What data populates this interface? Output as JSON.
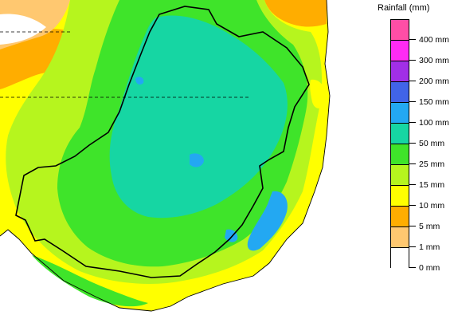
{
  "legend": {
    "title": "Rainfall (mm)",
    "bins": [
      {
        "label": "400 mm",
        "color": "#ff4ea6"
      },
      {
        "label": "300 mm",
        "color": "#ff2bf4"
      },
      {
        "label": "200 mm",
        "color": "#a12fe6"
      },
      {
        "label": "150 mm",
        "color": "#4164e8"
      },
      {
        "label": "100 mm",
        "color": "#23a8f2"
      },
      {
        "label": "50 mm",
        "color": "#16d6a3"
      },
      {
        "label": "25 mm",
        "color": "#3fe42a"
      },
      {
        "label": "15 mm",
        "color": "#b6f51e"
      },
      {
        "label": "10 mm",
        "color": "#ffff00"
      },
      {
        "label": "5 mm",
        "color": "#ffad00"
      },
      {
        "label": "1 mm",
        "color": "#ffc870"
      },
      {
        "label": "0 mm",
        "color": "#ffffff"
      }
    ]
  },
  "map_colors": {
    "ocean": "#ffffff",
    "border": "#000000"
  }
}
